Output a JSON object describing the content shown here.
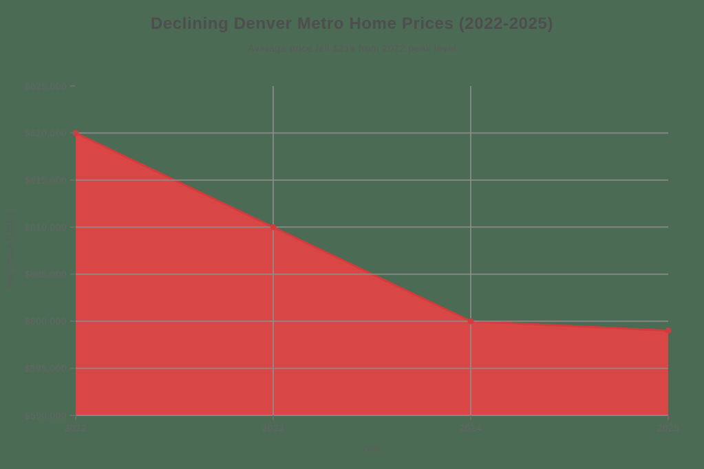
{
  "colors": {
    "background": "#4b6b54",
    "area_fill": "#d94646",
    "line": "#d23c3c",
    "marker": "#d23c3c",
    "grid": "#8d8d8d",
    "tick_mark": "#6d6d6d",
    "tick_text": "#656565",
    "title_text": "#4e4e4e",
    "subtitle_text": "#5a5a5a",
    "axis_label_text": "#5d5d5d"
  },
  "chart_data": {
    "type": "area",
    "title": "Declining Denver Metro Home Prices (2022-2025)",
    "subtitle": "Average price fell $21k from 2022 peak level",
    "xlabel": "Year",
    "ylabel": "Avg Price (USD)",
    "series": [
      {
        "name": "Avg Price",
        "x": [
          2022,
          2023,
          2024,
          2025
        ],
        "values": [
          620000,
          610000,
          600000,
          599000
        ]
      }
    ],
    "xtick_labels": [
      "2022",
      "2023",
      "2024",
      "2025"
    ],
    "ytick_values": [
      590000,
      595000,
      600000,
      605000,
      610000,
      615000,
      620000,
      625000
    ],
    "ytick_labels": [
      "$590,000",
      "$595,000",
      "$600,000",
      "$605,000",
      "$610,000",
      "$615,000",
      "$620,000",
      "$625,000"
    ],
    "ylim": [
      590000,
      625000
    ],
    "xlim": [
      2022,
      2025
    ],
    "hgrid_values": [
      590000,
      595000,
      600000,
      605000,
      610000,
      615000,
      620000
    ],
    "vgrid_values": [
      2023,
      2024
    ],
    "grid": true,
    "legend": "none",
    "markers": true,
    "area_baseline": 590000
  }
}
